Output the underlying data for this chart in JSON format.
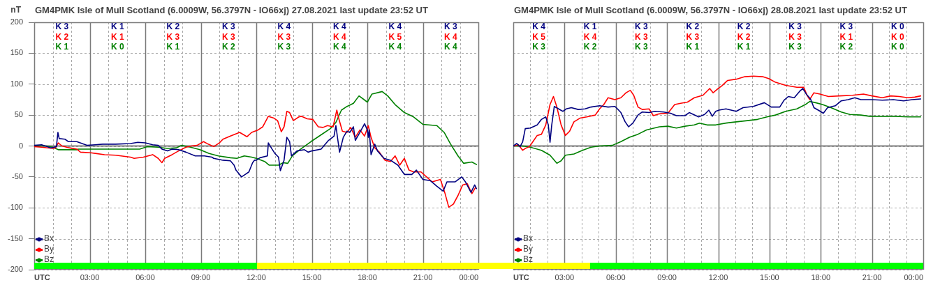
{
  "chart_data": [
    {
      "type": "line",
      "title": "GM4PMK Isle of Mull Scotland (6.0009W, 56.3797N - IO66xj) 27.08.2021 last update 23:52 UT",
      "ylabel": "nT",
      "xlim": [
        0,
        24
      ],
      "xticks": [
        {
          "value": 0,
          "label": "UTC"
        },
        {
          "value": 1,
          "label": null
        },
        {
          "value": 2,
          "label": null
        },
        {
          "value": 3,
          "label": "03:00"
        },
        {
          "value": 4,
          "label": null
        },
        {
          "value": 5,
          "label": null
        },
        {
          "value": 6,
          "label": "06:00"
        },
        {
          "value": 7,
          "label": null
        },
        {
          "value": 8,
          "label": null
        },
        {
          "value": 9,
          "label": "09:00"
        },
        {
          "value": 10,
          "label": null
        },
        {
          "value": 11,
          "label": null
        },
        {
          "value": 12,
          "label": "12:00"
        },
        {
          "value": 13,
          "label": null
        },
        {
          "value": 14,
          "label": null
        },
        {
          "value": 15,
          "label": "15:00"
        },
        {
          "value": 16,
          "label": null
        },
        {
          "value": 17,
          "label": null
        },
        {
          "value": 18,
          "label": "18:00"
        },
        {
          "value": 19,
          "label": null
        },
        {
          "value": 20,
          "label": null
        },
        {
          "value": 21,
          "label": "21:00"
        },
        {
          "value": 22,
          "label": null
        },
        {
          "value": 23,
          "label": null
        },
        {
          "value": 24,
          "label": "00:00"
        }
      ],
      "ylim": [
        -200,
        200
      ],
      "yticks": [
        -200,
        -150,
        -100,
        -50,
        0,
        50,
        100,
        150,
        200
      ],
      "grid": true,
      "legend": "bottom left",
      "ref_lines": [
        {
          "axis": "y",
          "value": 0,
          "color": "#808080"
        }
      ],
      "annotations": [
        "K 3",
        "K 1",
        "K 2",
        "K 3",
        "K 4",
        "K 4",
        "K 4",
        "K 3",
        "K 2",
        "K 1",
        "K 3",
        "K 3",
        "K 3",
        "K 4",
        "K 5",
        "K 4",
        "K 1",
        "K 0",
        "K 1",
        "K 2",
        "K 3",
        "K 4",
        "K 4",
        "K 4"
      ],
      "series": [
        {
          "name": "Bx",
          "color": "#000080",
          "x": [
            0,
            0.4,
            0.9,
            1.2,
            1.28,
            1.35,
            1.66,
            1.85,
            2.3,
            2.85,
            3.3,
            3.7,
            4.4,
            5.2,
            5.6,
            6.0,
            6.4,
            6.7,
            6.9,
            7.2,
            7.45,
            7.8,
            8.2,
            8.7,
            9.2,
            9.6,
            9.7,
            10.2,
            10.6,
            10.8,
            10.9,
            11.2,
            11.4,
            11.6,
            11.8,
            11.9,
            12.0,
            12.2,
            12.6,
            12.65,
            12.85,
            13.0,
            13.2,
            13.3,
            13.5,
            13.65,
            13.8,
            13.9,
            14.2,
            14.6,
            14.8,
            15.0,
            15.5,
            15.9,
            16.2,
            16.3,
            16.4,
            16.5,
            16.7,
            16.9,
            17.05,
            17.25,
            17.35,
            17.6,
            17.85,
            18.0,
            18.05,
            18.1,
            18.2,
            18.4,
            18.55,
            18.9,
            19.25,
            19.65,
            20.0,
            20.4,
            20.65,
            21.0,
            21.4,
            21.75,
            22.1,
            22.3,
            22.75,
            23.1,
            23.3,
            23.6,
            23.8,
            23.9
          ],
          "values": [
            1,
            2,
            -3,
            -1,
            22,
            12,
            11,
            7,
            7,
            1,
            2,
            3,
            3,
            4,
            6,
            5,
            2,
            1,
            -5,
            -8,
            -5,
            -6,
            -10,
            -16,
            -16,
            -18,
            -20,
            -23,
            -24,
            -31,
            -39,
            -50,
            -46,
            -42,
            -27,
            -23,
            -23,
            -19,
            -16,
            5,
            -5,
            -12,
            -18,
            -40,
            -23,
            14,
            7,
            -16,
            -8,
            -6,
            -10,
            -8,
            -5,
            9,
            16,
            33,
            11,
            -10,
            14,
            24,
            22,
            31,
            9,
            22,
            36,
            26,
            14,
            26,
            -14,
            3,
            -8,
            -20,
            -23,
            -31,
            -46,
            -46,
            -39,
            -54,
            -56,
            -65,
            -73,
            -58,
            -58,
            -50,
            -58,
            -75,
            -63,
            -69
          ]
        },
        {
          "name": "By",
          "color": "#ff0000",
          "x": [
            0,
            0.4,
            1.0,
            1.15,
            1.3,
            1.5,
            1.9,
            2.3,
            2.5,
            3.05,
            3.3,
            3.8,
            4.4,
            5.2,
            5.4,
            5.9,
            6.4,
            6.7,
            6.9,
            7.05,
            7.45,
            7.8,
            8.2,
            8.5,
            8.8,
            9.15,
            9.4,
            9.7,
            10.0,
            10.2,
            10.6,
            11.1,
            11.5,
            11.75,
            12.1,
            12.35,
            12.65,
            12.95,
            13.15,
            13.35,
            13.5,
            13.65,
            13.8,
            14.0,
            14.3,
            14.45,
            14.75,
            15.05,
            15.35,
            15.6,
            15.85,
            16.15,
            16.35,
            16.45,
            16.65,
            16.9,
            17.1,
            17.35,
            17.6,
            17.85,
            18.05,
            18.2,
            18.4,
            18.65,
            18.95,
            19.25,
            19.5,
            19.75,
            20.0,
            20.25,
            20.5,
            20.9,
            21.2,
            21.5,
            21.95,
            22.2,
            22.4,
            22.65,
            22.9,
            23.15,
            23.4,
            23.65,
            23.85
          ],
          "values": [
            -1,
            -2,
            -4,
            -3,
            5,
            0,
            -3,
            -5,
            -10,
            -11,
            -12,
            -14,
            -15,
            -18,
            -20,
            -18,
            -14,
            -20,
            -27,
            -20,
            -14,
            -8,
            -2,
            0,
            1,
            7,
            3,
            -1,
            5,
            11,
            16,
            22,
            15,
            22,
            26,
            31,
            48,
            45,
            41,
            23,
            31,
            56,
            54,
            41,
            47,
            48,
            44,
            43,
            31,
            30,
            33,
            31,
            58,
            45,
            24,
            22,
            30,
            14,
            26,
            16,
            33,
            14,
            -3,
            -10,
            -23,
            -25,
            -16,
            -31,
            -20,
            -39,
            -42,
            -42,
            -50,
            -58,
            -54,
            -77,
            -99,
            -94,
            -80,
            -63,
            -61,
            -77,
            -67
          ]
        },
        {
          "name": "Bz",
          "color": "#008000",
          "x": [
            0,
            0.65,
            1.0,
            1.3,
            2.3,
            2.4,
            3.4,
            4.7,
            5.7,
            6.1,
            6.7,
            7.2,
            7.7,
            7.95,
            8.45,
            8.95,
            9.45,
            9.95,
            10.6,
            10.95,
            11.35,
            11.75,
            12.0,
            12.45,
            12.7,
            13.2,
            13.45,
            13.7,
            13.95,
            14.35,
            14.95,
            15.5,
            16.0,
            16.3,
            16.6,
            16.85,
            17.25,
            17.55,
            18.0,
            18.25,
            18.8,
            19.1,
            19.5,
            20.0,
            20.5,
            21.0,
            21.75,
            22.15,
            22.5,
            22.9,
            23.2,
            23.65,
            23.9
          ],
          "values": [
            0,
            0,
            -2,
            -6,
            -6,
            -5,
            -5,
            -5,
            -5,
            -1,
            -2,
            -4,
            -3,
            1,
            -2,
            -6,
            -12,
            -16,
            -19,
            -20,
            -16,
            -18,
            -20,
            -25,
            -31,
            -31,
            -27,
            -28,
            -16,
            -6,
            7,
            18,
            28,
            38,
            58,
            63,
            69,
            81,
            71,
            84,
            88,
            81,
            67,
            54,
            47,
            35,
            33,
            22,
            3,
            -16,
            -28,
            -26,
            -30
          ]
        }
      ]
    },
    {
      "type": "line",
      "title": "GM4PMK Isle of Mull Scotland (6.0009W, 56.3797N - IO66xj) 28.08.2021 last update 23:52 UT",
      "xlim": [
        0,
        24
      ],
      "xticks": [
        {
          "value": 0,
          "label": "UTC"
        },
        {
          "value": 1,
          "label": null
        },
        {
          "value": 2,
          "label": null
        },
        {
          "value": 3,
          "label": "03:00"
        },
        {
          "value": 4,
          "label": null
        },
        {
          "value": 5,
          "label": null
        },
        {
          "value": 6,
          "label": "06:00"
        },
        {
          "value": 7,
          "label": null
        },
        {
          "value": 8,
          "label": null
        },
        {
          "value": 9,
          "label": "09:00"
        },
        {
          "value": 10,
          "label": null
        },
        {
          "value": 11,
          "label": null
        },
        {
          "value": 12,
          "label": "12:00"
        },
        {
          "value": 13,
          "label": null
        },
        {
          "value": 14,
          "label": null
        },
        {
          "value": 15,
          "label": "15:00"
        },
        {
          "value": 16,
          "label": null
        },
        {
          "value": 17,
          "label": null
        },
        {
          "value": 18,
          "label": "18:00"
        },
        {
          "value": 19,
          "label": null
        },
        {
          "value": 20,
          "label": null
        },
        {
          "value": 21,
          "label": "21:00"
        },
        {
          "value": 22,
          "label": null
        },
        {
          "value": 23,
          "label": null
        },
        {
          "value": 24,
          "label": "00:00"
        }
      ],
      "ylim": [
        -200,
        200
      ],
      "yticks": [
        -200,
        -150,
        -100,
        -50,
        0,
        50,
        100,
        150,
        200
      ],
      "tick_labels": "x",
      "grid": true,
      "legend": "bottom left",
      "ref_lines": [
        {
          "axis": "y",
          "value": 0,
          "color": "#808080"
        }
      ],
      "annotations": [
        "K 4",
        "K 1",
        "K 3",
        "K 2",
        "K 2",
        "K 3",
        "K 3",
        "K 0",
        "K 5",
        "K 4",
        "K 3",
        "K 3",
        "K 2",
        "K 3",
        "K 1",
        "K 0",
        "K 3",
        "K 2",
        "K 3",
        "K 1",
        "K 1",
        "K 3",
        "K 2",
        "K 0"
      ],
      "series": [
        {
          "name": "Bx",
          "color": "#000080",
          "x": [
            0,
            0.2,
            0.4,
            0.55,
            0.7,
            1.0,
            1.4,
            1.65,
            1.9,
            2.05,
            2.15,
            2.25,
            2.4,
            2.65,
            2.9,
            3.1,
            3.4,
            3.8,
            4.2,
            4.55,
            5.05,
            5.55,
            5.95,
            6.1,
            6.3,
            6.55,
            6.75,
            7.0,
            7.3,
            7.55,
            7.95,
            8.3,
            8.8,
            9.2,
            9.55,
            10.05,
            10.3,
            10.85,
            11.2,
            11.45,
            11.65,
            11.85,
            12.05,
            12.45,
            13.05,
            13.45,
            14.05,
            14.7,
            15.1,
            15.6,
            15.85,
            16.1,
            16.45,
            16.75,
            16.95,
            17.15,
            17.4,
            17.6,
            17.85,
            18.15,
            18.4,
            18.85,
            19.2,
            19.6,
            20.0,
            20.35,
            21.0,
            21.6,
            22.25,
            22.85,
            23.35,
            23.85
          ],
          "values": [
            0,
            4,
            -1,
            7,
            28,
            29,
            34,
            43,
            47,
            34,
            6,
            34,
            64,
            60,
            56,
            60,
            62,
            59,
            60,
            63,
            65,
            63,
            64,
            60,
            54,
            39,
            31,
            37,
            50,
            55,
            54,
            56,
            55,
            53,
            49,
            49,
            54,
            47,
            51,
            58,
            48,
            56,
            58,
            60,
            56,
            62,
            64,
            70,
            63,
            63,
            74,
            80,
            78,
            88,
            93,
            84,
            76,
            62,
            58,
            53,
            62,
            65,
            73,
            75,
            78,
            75,
            75,
            74,
            75,
            73,
            75,
            76
          ]
        },
        {
          "name": "By",
          "color": "#ff0000",
          "x": [
            0,
            0.3,
            0.55,
            0.7,
            0.95,
            1.15,
            1.4,
            1.65,
            1.9,
            2.15,
            2.35,
            2.55,
            2.8,
            3.05,
            3.3,
            3.55,
            3.9,
            4.3,
            4.8,
            5.05,
            5.3,
            5.55,
            5.95,
            6.3,
            6.6,
            6.85,
            7.05,
            7.3,
            7.55,
            7.95,
            8.2,
            8.55,
            9.05,
            9.45,
            9.8,
            10.2,
            10.6,
            11.1,
            11.5,
            11.7,
            12.0,
            12.2,
            12.55,
            13.05,
            13.55,
            14.05,
            14.6,
            14.95,
            15.35,
            15.95,
            16.6,
            17.0,
            17.2,
            17.35,
            17.6,
            17.95,
            18.45,
            19.1,
            19.85,
            20.5,
            21.0,
            21.6,
            22.1,
            22.6,
            23.1,
            23.5,
            23.85
          ],
          "values": [
            0,
            2,
            -7,
            -4,
            -1,
            7,
            17,
            19,
            34,
            67,
            80,
            63,
            34,
            17,
            24,
            39,
            45,
            47,
            50,
            60,
            67,
            78,
            75,
            78,
            86,
            90,
            82,
            63,
            59,
            60,
            49,
            52,
            53,
            67,
            69,
            71,
            78,
            82,
            93,
            86,
            93,
            97,
            106,
            108,
            112,
            113,
            112,
            109,
            103,
            98,
            95,
            95,
            82,
            75,
            86,
            84,
            80,
            81,
            82,
            84,
            81,
            78,
            81,
            80,
            78,
            79,
            81
          ]
        },
        {
          "name": "Bz",
          "color": "#008000",
          "x": [
            0,
            0.55,
            1.0,
            1.65,
            2.15,
            2.55,
            2.8,
            3.05,
            3.55,
            4.05,
            4.55,
            5.05,
            5.8,
            6.3,
            6.8,
            7.3,
            7.8,
            8.55,
            9.05,
            9.55,
            10.05,
            10.6,
            10.9,
            11.35,
            11.85,
            12.45,
            13.05,
            13.7,
            14.3,
            14.85,
            15.35,
            15.95,
            16.6,
            17.1,
            17.35,
            17.7,
            18.1,
            18.6,
            19.2,
            19.7,
            20.35,
            20.85,
            21.6,
            22.35,
            23.1,
            23.85
          ],
          "values": [
            0,
            0,
            -2,
            -7,
            -15,
            -28,
            -24,
            -15,
            -13,
            -7,
            -2,
            0,
            1,
            7,
            14,
            19,
            26,
            31,
            32,
            29,
            32,
            34,
            37,
            34,
            34,
            37,
            39,
            41,
            43,
            47,
            50,
            56,
            60,
            67,
            72,
            70,
            67,
            62,
            55,
            51,
            50,
            48,
            48,
            48,
            47,
            47
          ]
        }
      ]
    }
  ]
}
